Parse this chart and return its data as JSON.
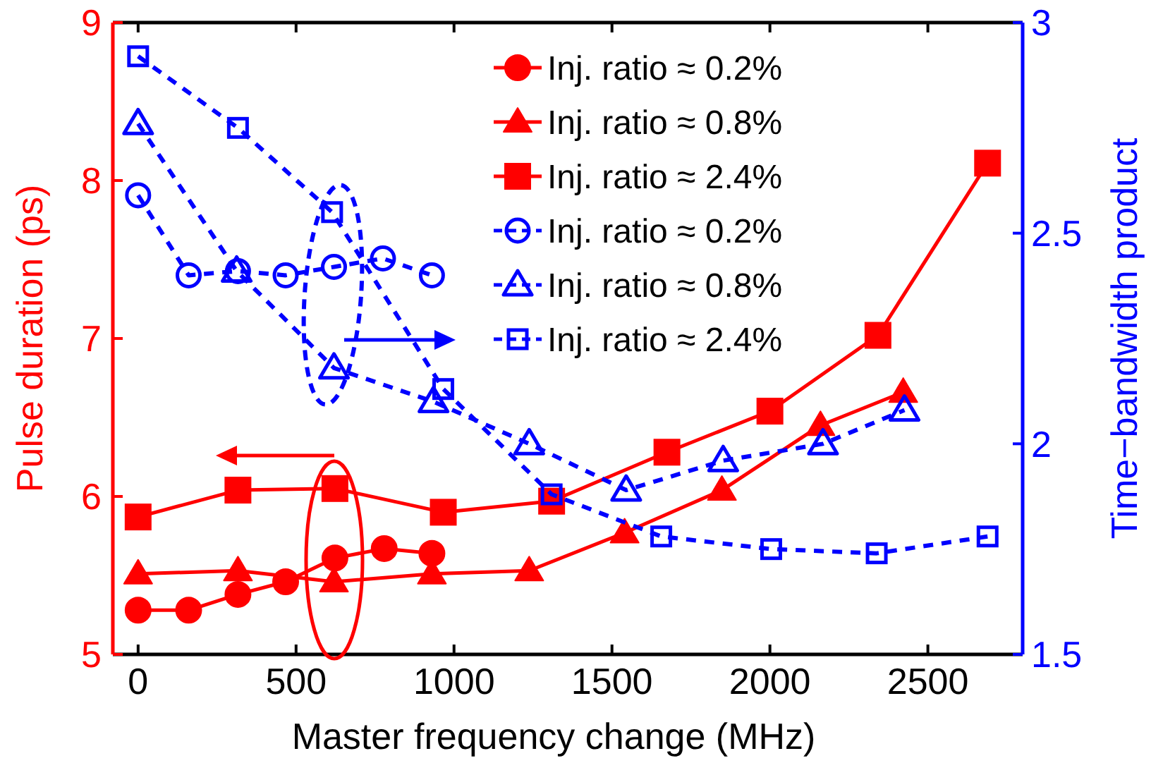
{
  "chart_data": {
    "type": "line",
    "xlabel": "Master frequency change (MHz)",
    "ylabel": "Pulse duration (ps)",
    "y2label": "Time−bandwidth product",
    "xlim": [
      -80,
      2800
    ],
    "xticks": [
      0,
      500,
      1000,
      1500,
      2000,
      2500
    ],
    "ylim": [
      5,
      9
    ],
    "yticks": [
      5,
      6,
      7,
      8,
      9
    ],
    "y2lim": [
      1.5,
      3
    ],
    "y2ticks": [
      1.5,
      2,
      2.5,
      3
    ],
    "legend": "top",
    "grid": false,
    "series": [
      {
        "name": "Inj. ratio ≈ 0.2%",
        "color": "#ff0000",
        "marker": "circle",
        "line_style": "solid",
        "x": [
          0,
          160,
          316,
          467,
          623,
          779,
          930
        ],
        "values": [
          5.28,
          5.28,
          5.38,
          5.46,
          5.61,
          5.67,
          5.64
        ]
      },
      {
        "name": "Inj. ratio ≈ 0.8%",
        "color": "#ff0000",
        "marker": "triangle",
        "line_style": "solid",
        "x": [
          0,
          316,
          620,
          930,
          1238,
          1540,
          1848,
          2160,
          2422
        ],
        "values": [
          5.51,
          5.53,
          5.46,
          5.51,
          5.53,
          5.77,
          6.04,
          6.45,
          6.66
        ]
      },
      {
        "name": "Inj. ratio ≈ 2.4%",
        "color": "#ff0000",
        "marker": "square",
        "line_style": "solid",
        "x": [
          0,
          316,
          623,
          966,
          1309,
          1674,
          2000,
          2342,
          2689
        ],
        "values": [
          5.87,
          6.04,
          6.05,
          5.9,
          5.97,
          6.28,
          6.54,
          7.02,
          8.11
        ]
      },
      {
        "name": "Inj. ratio ≈ 0.2%",
        "color": "#0000ff",
        "marker": "circle",
        "line_style": "dashed",
        "axis": "y2",
        "x": [
          0,
          160,
          316,
          467,
          620,
          775,
          930
        ],
        "values": [
          2.59,
          2.4,
          2.41,
          2.4,
          2.42,
          2.44,
          2.4
        ]
      },
      {
        "name": "Inj. ratio ≈ 0.8%",
        "color": "#0000ff",
        "marker": "triangle",
        "line_style": "dashed",
        "axis": "y2",
        "x": [
          0,
          312,
          620,
          935,
          1238,
          1545,
          1852,
          2168,
          2426
        ],
        "values": [
          2.76,
          2.41,
          2.18,
          2.1,
          2.0,
          1.89,
          1.96,
          2.0,
          2.08
        ]
      },
      {
        "name": "Inj. ratio ≈ 2.4%",
        "color": "#0000ff",
        "marker": "square",
        "line_style": "dashed",
        "axis": "y2",
        "x": [
          0,
          316,
          614,
          966,
          1309,
          1656,
          2004,
          2338,
          2689
        ],
        "values": [
          2.92,
          2.75,
          2.55,
          2.13,
          1.88,
          1.78,
          1.75,
          1.74,
          1.78
        ]
      }
    ]
  }
}
